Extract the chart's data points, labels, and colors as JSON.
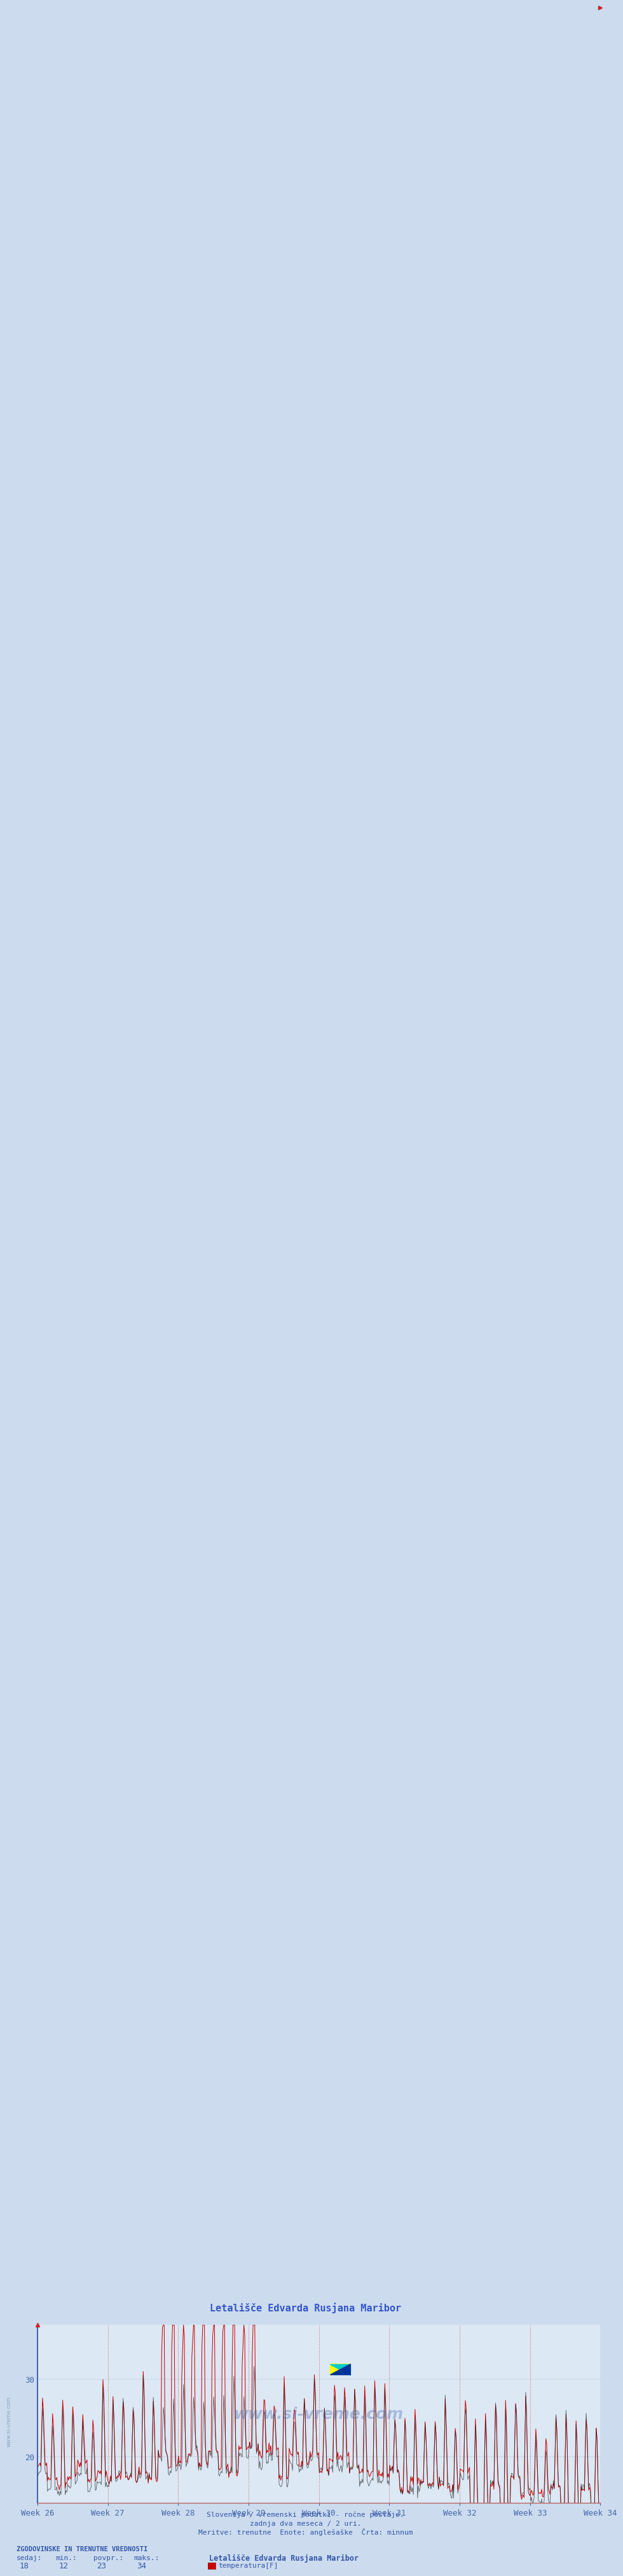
{
  "title": "Letališče Edvarda Rusjana Maribor",
  "bg_color": "#ccdcee",
  "plot_bg_color": "#dce8f4",
  "grid_color": "#b8c8dc",
  "line_color_red": "#cc0000",
  "line_color_dark": "#222222",
  "y_min": 14,
  "y_max": 36,
  "y_ticks": [
    20,
    30
  ],
  "x_labels": [
    "Week 26",
    "Week 27",
    "Week 28",
    "Week 29",
    "Week 30",
    "Week 31",
    "Week 32",
    "Week 33",
    "Week 34"
  ],
  "subtitle1": "Slovenija / vremenski podatki - ročne postaje.",
  "subtitle2": "zadnja dva meseca / 2 uri.",
  "subtitle3": "Meritve: trenutne  Enote: anglešaške  Črta: minnum",
  "footer_title": "ZGODOVINSKE IN TRENUTNE VREDNOSTI",
  "footer_labels": [
    "sedaj:",
    "min.:",
    "povpr.:",
    "maks.:"
  ],
  "footer_values": [
    "18",
    "12",
    "23",
    "34"
  ],
  "legend_title": "Letališče Edvarda Rusjana Maribor",
  "legend_item": "temperatura[F]",
  "n_points": 672,
  "seed": 42,
  "axis_color": "#4466aa",
  "text_color": "#3355aa",
  "watermark_color": "#4466aa"
}
